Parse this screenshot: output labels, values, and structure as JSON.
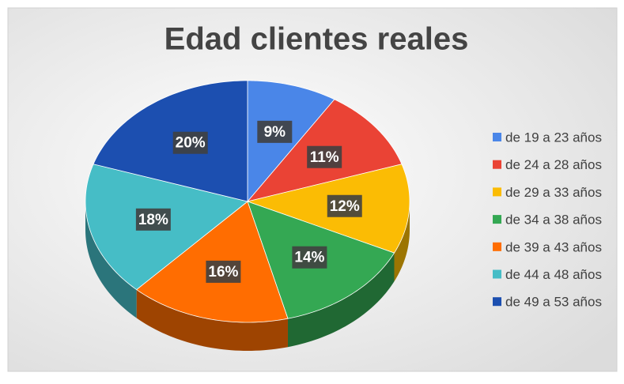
{
  "chart_data": {
    "type": "pie3d",
    "title": "Edad clientes reales",
    "categories": [
      "de 19 a 23 años",
      "de 24 a 28 años",
      "de 29 a 33 años",
      "de 34 a 38 años",
      "de 39 a 43 años",
      "de 44 a 48 años",
      "de 49 a 53 años"
    ],
    "values": [
      9,
      11,
      12,
      14,
      16,
      18,
      20
    ],
    "value_labels": [
      "9%",
      "11%",
      "12%",
      "14%",
      "16%",
      "18%",
      "20%"
    ],
    "colors": [
      "#4a86e8",
      "#ea4335",
      "#fbbc04",
      "#34a853",
      "#ff6d01",
      "#46bdc6",
      "#1c4fb0"
    ],
    "legend": "right"
  }
}
